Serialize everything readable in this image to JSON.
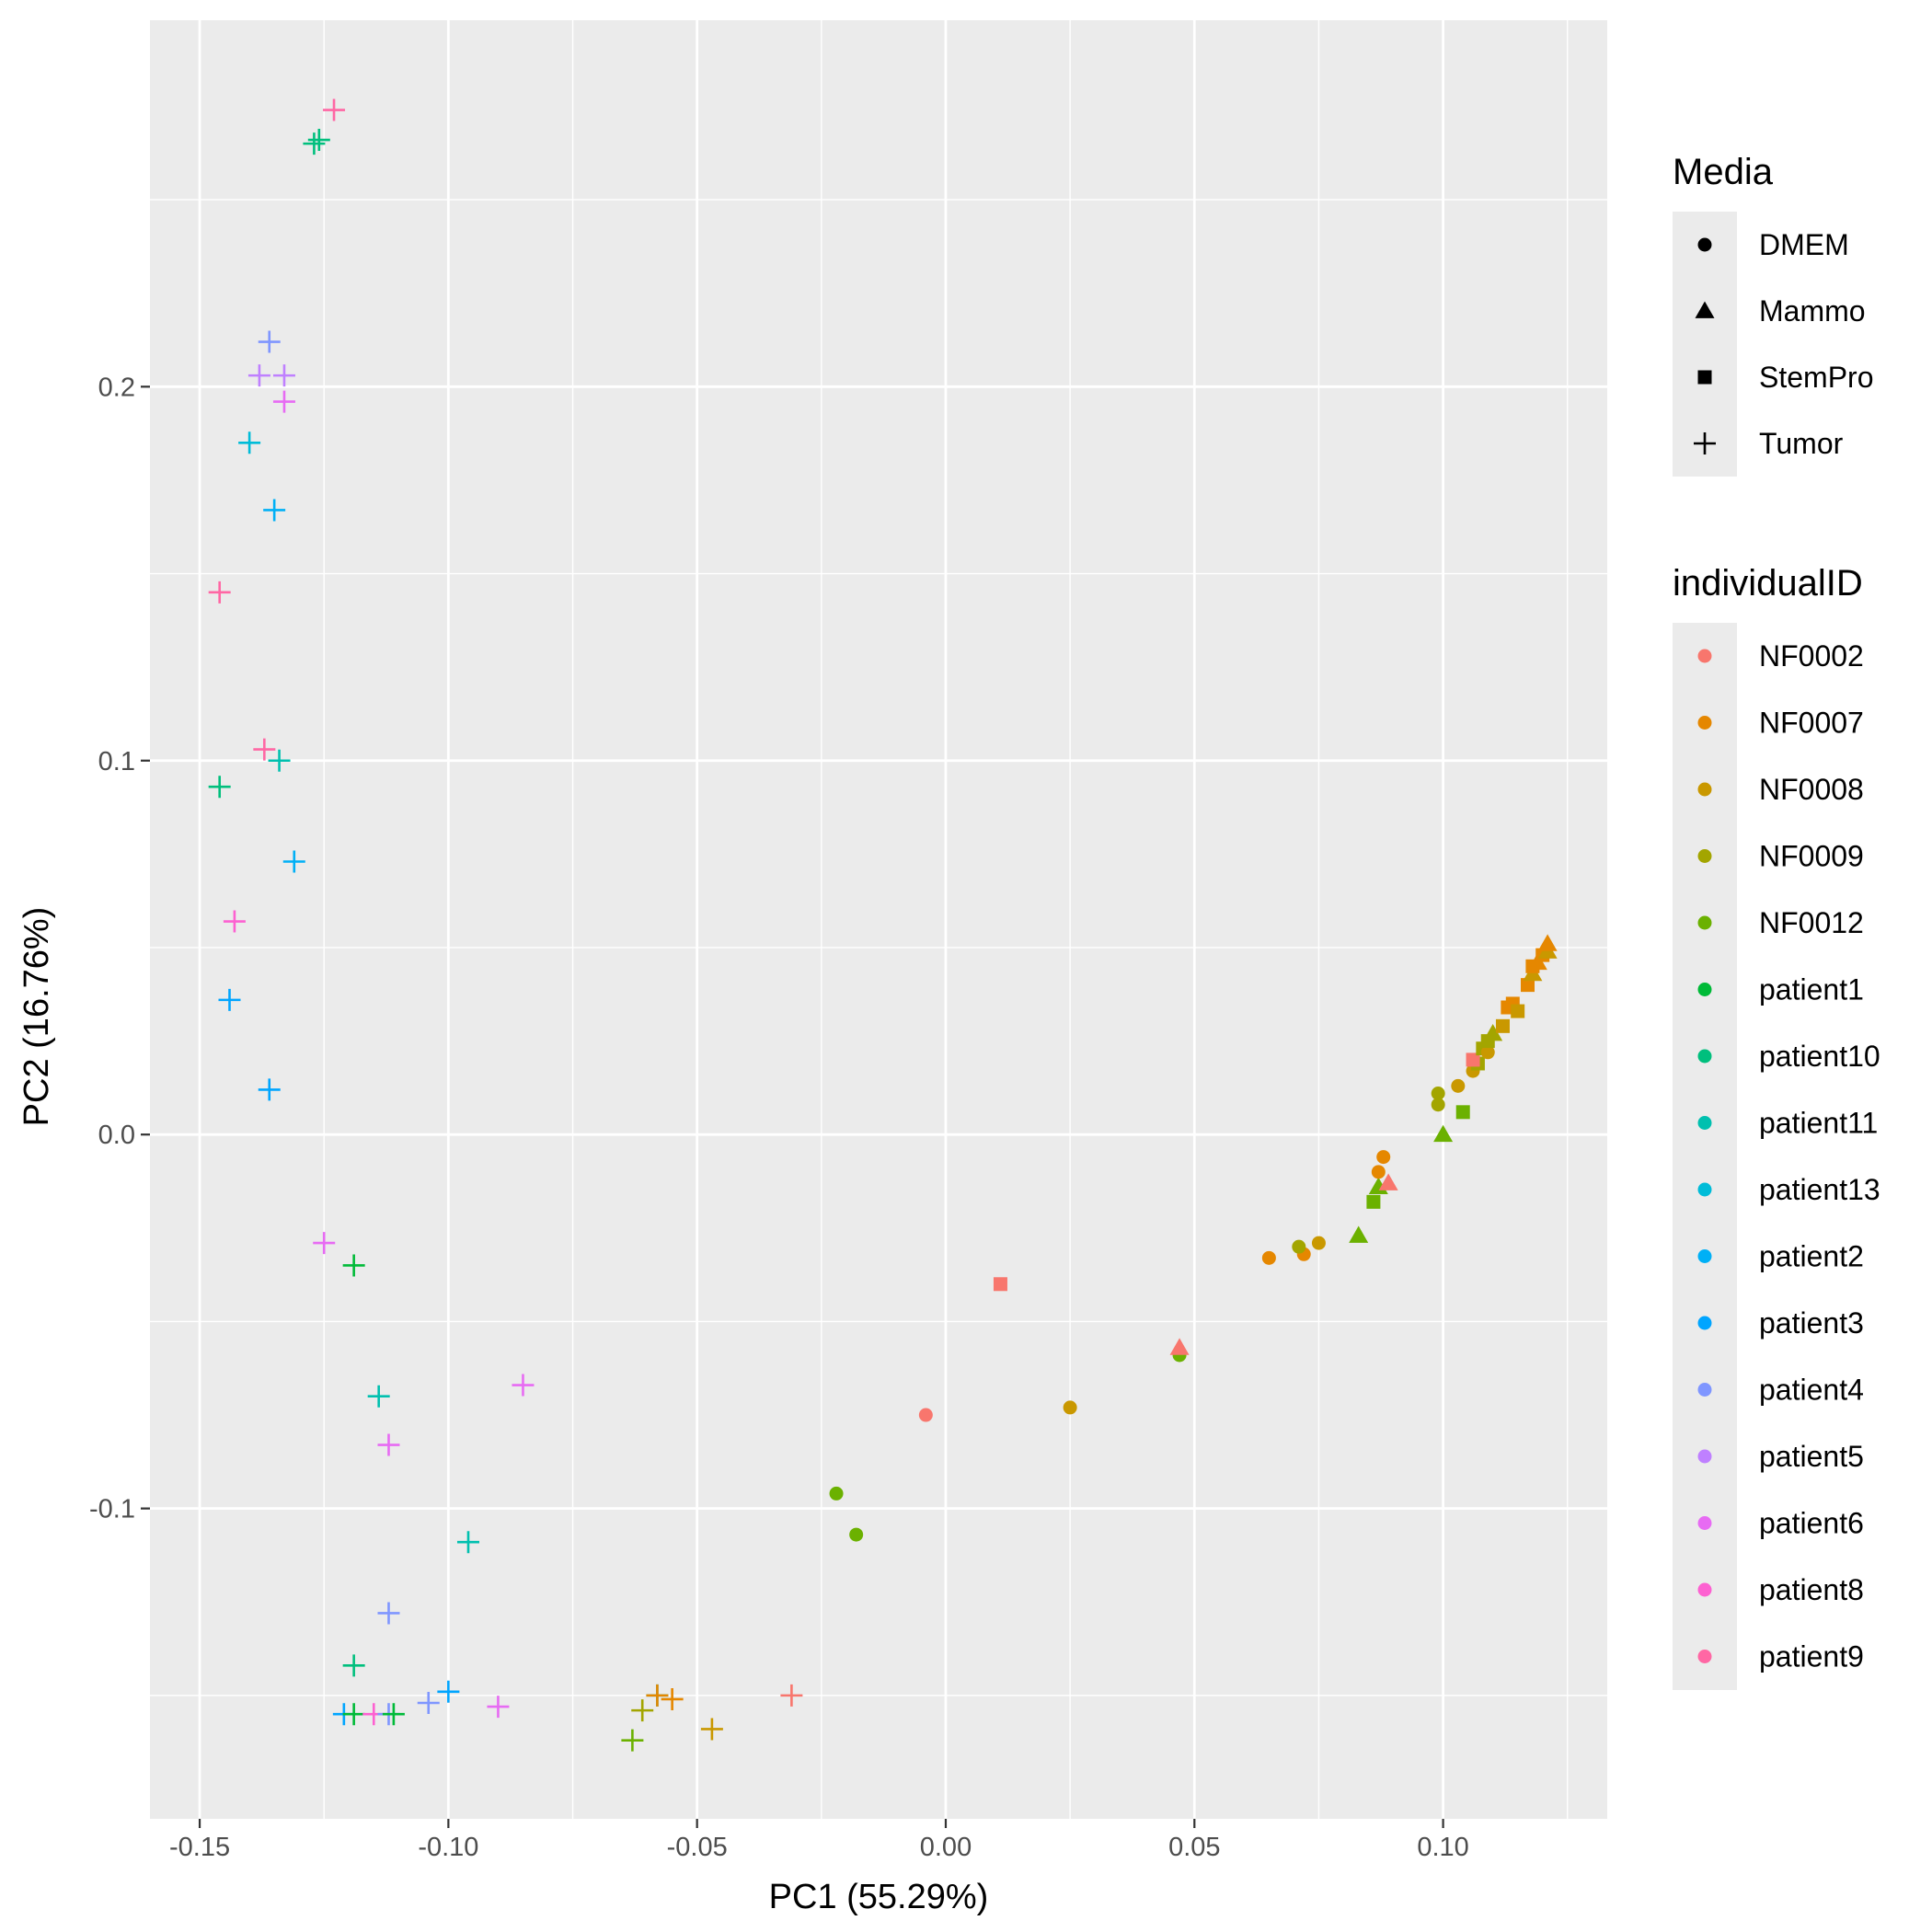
{
  "chart_data": {
    "type": "scatter",
    "xlabel": "PC1 (55.29%)",
    "ylabel": "PC2 (16.76%)",
    "xlim": [
      -0.16,
      0.133
    ],
    "ylim": [
      -0.183,
      0.298
    ],
    "x_ticks": [
      -0.15,
      -0.1,
      -0.05,
      0.0,
      0.05,
      0.1
    ],
    "x_tick_labels": [
      "-0.15",
      "-0.10",
      "-0.05",
      "0.00",
      "0.05",
      "0.10"
    ],
    "y_ticks": [
      -0.1,
      0.0,
      0.1,
      0.2
    ],
    "y_tick_labels": [
      "-0.1",
      "0.0",
      "0.1",
      "0.2"
    ],
    "grid": true,
    "legend_placement": "right",
    "shape_legend": {
      "title": "Media",
      "items": [
        {
          "label": "DMEM",
          "shape": "circle"
        },
        {
          "label": "Mammo",
          "shape": "triangle"
        },
        {
          "label": "StemPro",
          "shape": "square"
        },
        {
          "label": "Tumor",
          "shape": "plus"
        }
      ]
    },
    "color_legend": {
      "title": "individualID",
      "items": [
        {
          "label": "NF0002",
          "color": "#F8766D"
        },
        {
          "label": "NF0007",
          "color": "#E58700"
        },
        {
          "label": "NF0008",
          "color": "#C99800"
        },
        {
          "label": "NF0009",
          "color": "#A3A500"
        },
        {
          "label": "NF0012",
          "color": "#6BB100"
        },
        {
          "label": "patient1",
          "color": "#00BA38"
        },
        {
          "label": "patient10",
          "color": "#00BF7D"
        },
        {
          "label": "patient11",
          "color": "#00C0AF"
        },
        {
          "label": "patient13",
          "color": "#00BCD8"
        },
        {
          "label": "patient2",
          "color": "#00B0F6"
        },
        {
          "label": "patient3",
          "color": "#00A5FF"
        },
        {
          "label": "patient4",
          "color": "#7F96FF"
        },
        {
          "label": "patient5",
          "color": "#BF80FF"
        },
        {
          "label": "patient6",
          "color": "#E76BF3"
        },
        {
          "label": "patient8",
          "color": "#FD61D1"
        },
        {
          "label": "patient9",
          "color": "#FF67A4"
        }
      ]
    },
    "points": [
      {
        "x": -0.123,
        "y": 0.274,
        "media": "Tumor",
        "id": "patient9"
      },
      {
        "x": -0.127,
        "y": 0.265,
        "media": "Tumor",
        "id": "patient10"
      },
      {
        "x": -0.126,
        "y": 0.266,
        "media": "Tumor",
        "id": "patient10"
      },
      {
        "x": -0.136,
        "y": 0.212,
        "media": "Tumor",
        "id": "patient4"
      },
      {
        "x": -0.138,
        "y": 0.203,
        "media": "Tumor",
        "id": "patient5"
      },
      {
        "x": -0.133,
        "y": 0.203,
        "media": "Tumor",
        "id": "patient5"
      },
      {
        "x": -0.133,
        "y": 0.196,
        "media": "Tumor",
        "id": "patient6"
      },
      {
        "x": -0.14,
        "y": 0.185,
        "media": "Tumor",
        "id": "patient13"
      },
      {
        "x": -0.135,
        "y": 0.167,
        "media": "Tumor",
        "id": "patient2"
      },
      {
        "x": -0.146,
        "y": 0.145,
        "media": "Tumor",
        "id": "patient9"
      },
      {
        "x": -0.137,
        "y": 0.103,
        "media": "Tumor",
        "id": "patient9"
      },
      {
        "x": -0.134,
        "y": 0.1,
        "media": "Tumor",
        "id": "patient11"
      },
      {
        "x": -0.146,
        "y": 0.093,
        "media": "Tumor",
        "id": "patient10"
      },
      {
        "x": -0.131,
        "y": 0.073,
        "media": "Tumor",
        "id": "patient2"
      },
      {
        "x": -0.143,
        "y": 0.057,
        "media": "Tumor",
        "id": "patient8"
      },
      {
        "x": -0.144,
        "y": 0.036,
        "media": "Tumor",
        "id": "patient3"
      },
      {
        "x": -0.136,
        "y": 0.012,
        "media": "Tumor",
        "id": "patient3"
      },
      {
        "x": -0.125,
        "y": -0.029,
        "media": "Tumor",
        "id": "patient6"
      },
      {
        "x": -0.119,
        "y": -0.035,
        "media": "Tumor",
        "id": "patient1"
      },
      {
        "x": -0.085,
        "y": -0.067,
        "media": "Tumor",
        "id": "patient6"
      },
      {
        "x": -0.114,
        "y": -0.07,
        "media": "Tumor",
        "id": "patient11"
      },
      {
        "x": -0.112,
        "y": -0.083,
        "media": "Tumor",
        "id": "patient6"
      },
      {
        "x": -0.096,
        "y": -0.109,
        "media": "Tumor",
        "id": "patient11"
      },
      {
        "x": -0.112,
        "y": -0.128,
        "media": "Tumor",
        "id": "patient4"
      },
      {
        "x": -0.119,
        "y": -0.142,
        "media": "Tumor",
        "id": "patient10"
      },
      {
        "x": -0.1,
        "y": -0.149,
        "media": "Tumor",
        "id": "patient3"
      },
      {
        "x": -0.104,
        "y": -0.152,
        "media": "Tumor",
        "id": "patient4"
      },
      {
        "x": -0.09,
        "y": -0.153,
        "media": "Tumor",
        "id": "patient6"
      },
      {
        "x": -0.121,
        "y": -0.155,
        "media": "Tumor",
        "id": "patient3"
      },
      {
        "x": -0.119,
        "y": -0.155,
        "media": "Tumor",
        "id": "patient1"
      },
      {
        "x": -0.115,
        "y": -0.155,
        "media": "Tumor",
        "id": "patient8"
      },
      {
        "x": -0.112,
        "y": -0.155,
        "media": "Tumor",
        "id": "patient4"
      },
      {
        "x": -0.111,
        "y": -0.155,
        "media": "Tumor",
        "id": "patient1"
      },
      {
        "x": -0.058,
        "y": -0.15,
        "media": "Tumor",
        "id": "patient11"
      },
      {
        "x": -0.058,
        "y": -0.15,
        "media": "Tumor",
        "id": "NF0007"
      },
      {
        "x": -0.055,
        "y": -0.151,
        "media": "Tumor",
        "id": "NF0007"
      },
      {
        "x": -0.061,
        "y": -0.154,
        "media": "Tumor",
        "id": "NF0009"
      },
      {
        "x": -0.047,
        "y": -0.159,
        "media": "Tumor",
        "id": "NF0008"
      },
      {
        "x": -0.063,
        "y": -0.162,
        "media": "Tumor",
        "id": "NF0012"
      },
      {
        "x": -0.031,
        "y": -0.15,
        "media": "Tumor",
        "id": "NF0002"
      },
      {
        "x": 0.011,
        "y": -0.04,
        "media": "StemPro",
        "id": "NF0002"
      },
      {
        "x": -0.004,
        "y": -0.075,
        "media": "DMEM",
        "id": "NF0002"
      },
      {
        "x": 0.025,
        "y": -0.073,
        "media": "DMEM",
        "id": "NF0008"
      },
      {
        "x": -0.022,
        "y": -0.096,
        "media": "DMEM",
        "id": "NF0012"
      },
      {
        "x": -0.018,
        "y": -0.107,
        "media": "DMEM",
        "id": "NF0012"
      },
      {
        "x": 0.047,
        "y": -0.059,
        "media": "DMEM",
        "id": "NF0012"
      },
      {
        "x": 0.047,
        "y": -0.057,
        "media": "Mammo",
        "id": "NF0002"
      },
      {
        "x": 0.065,
        "y": -0.033,
        "media": "DMEM",
        "id": "NF0007"
      },
      {
        "x": 0.072,
        "y": -0.032,
        "media": "DMEM",
        "id": "NF0007"
      },
      {
        "x": 0.071,
        "y": -0.03,
        "media": "DMEM",
        "id": "NF0009"
      },
      {
        "x": 0.075,
        "y": -0.029,
        "media": "DMEM",
        "id": "NF0008"
      },
      {
        "x": 0.083,
        "y": -0.027,
        "media": "Mammo",
        "id": "NF0012"
      },
      {
        "x": 0.086,
        "y": -0.018,
        "media": "StemPro",
        "id": "NF0012"
      },
      {
        "x": 0.087,
        "y": -0.014,
        "media": "Mammo",
        "id": "NF0012"
      },
      {
        "x": 0.089,
        "y": -0.013,
        "media": "Mammo",
        "id": "NF0002"
      },
      {
        "x": 0.087,
        "y": -0.01,
        "media": "DMEM",
        "id": "NF0007"
      },
      {
        "x": 0.088,
        "y": -0.006,
        "media": "DMEM",
        "id": "NF0007"
      },
      {
        "x": 0.1,
        "y": 0.0,
        "media": "Mammo",
        "id": "NF0012"
      },
      {
        "x": 0.104,
        "y": 0.006,
        "media": "StemPro",
        "id": "NF0012"
      },
      {
        "x": 0.099,
        "y": 0.008,
        "media": "DMEM",
        "id": "NF0009"
      },
      {
        "x": 0.099,
        "y": 0.011,
        "media": "DMEM",
        "id": "NF0009"
      },
      {
        "x": 0.103,
        "y": 0.013,
        "media": "DMEM",
        "id": "NF0008"
      },
      {
        "x": 0.106,
        "y": 0.017,
        "media": "DMEM",
        "id": "NF0008"
      },
      {
        "x": 0.107,
        "y": 0.019,
        "media": "StemPro",
        "id": "NF0009"
      },
      {
        "x": 0.106,
        "y": 0.02,
        "media": "StemPro",
        "id": "NF0002"
      },
      {
        "x": 0.108,
        "y": 0.023,
        "media": "StemPro",
        "id": "NF0009"
      },
      {
        "x": 0.109,
        "y": 0.022,
        "media": "DMEM",
        "id": "NF0008"
      },
      {
        "x": 0.109,
        "y": 0.025,
        "media": "StemPro",
        "id": "NF0009"
      },
      {
        "x": 0.11,
        "y": 0.027,
        "media": "Mammo",
        "id": "NF0009"
      },
      {
        "x": 0.112,
        "y": 0.029,
        "media": "StemPro",
        "id": "NF0008"
      },
      {
        "x": 0.113,
        "y": 0.034,
        "media": "StemPro",
        "id": "NF0007"
      },
      {
        "x": 0.114,
        "y": 0.035,
        "media": "StemPro",
        "id": "NF0007"
      },
      {
        "x": 0.115,
        "y": 0.033,
        "media": "StemPro",
        "id": "NF0008"
      },
      {
        "x": 0.117,
        "y": 0.04,
        "media": "StemPro",
        "id": "NF0007"
      },
      {
        "x": 0.118,
        "y": 0.043,
        "media": "Mammo",
        "id": "NF0008"
      },
      {
        "x": 0.118,
        "y": 0.045,
        "media": "StemPro",
        "id": "NF0007"
      },
      {
        "x": 0.119,
        "y": 0.046,
        "media": "Mammo",
        "id": "NF0007"
      },
      {
        "x": 0.12,
        "y": 0.048,
        "media": "StemPro",
        "id": "NF0007"
      },
      {
        "x": 0.121,
        "y": 0.049,
        "media": "Mammo",
        "id": "NF0008"
      },
      {
        "x": 0.121,
        "y": 0.051,
        "media": "Mammo",
        "id": "NF0007"
      }
    ]
  }
}
